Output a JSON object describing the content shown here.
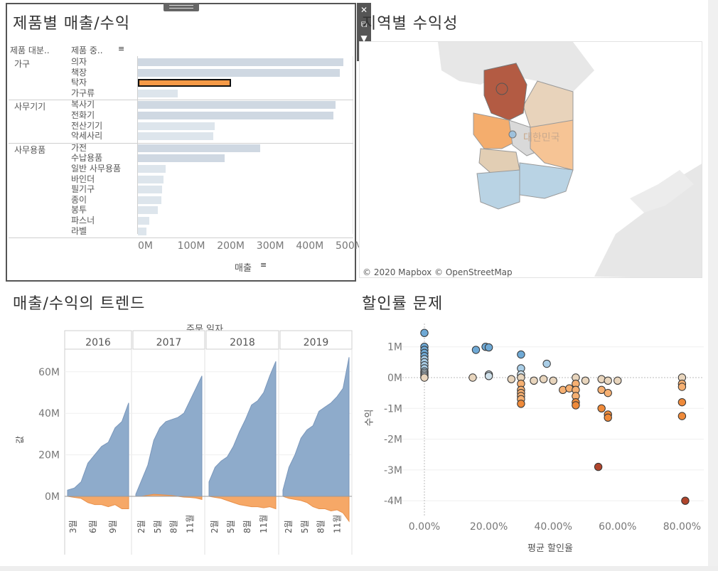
{
  "panels": {
    "product": {
      "title": "제품별 매출/수익",
      "col1": "제품 대분..",
      "col2": "제품 중..",
      "x_label": "매출",
      "x_ticks": [
        "0M",
        "100M",
        "200M",
        "300M",
        "400M",
        "500M"
      ]
    },
    "region": {
      "title": "지역별 수익성",
      "map_label": "대한민국",
      "credit": "© 2020 Mapbox © OpenStreetMap"
    },
    "trend": {
      "title": "매출/수익의 트렌드",
      "top_label": "주문 일자",
      "y_label": "값",
      "years": [
        "2016",
        "2017",
        "2018",
        "2019"
      ],
      "y_ticks": [
        "60M",
        "40M",
        "20M",
        "0M"
      ],
      "month_ticks": [
        [
          "3월",
          "6월",
          "9월"
        ],
        [
          "2월",
          "5월",
          "8월",
          "11월"
        ],
        [
          "2월",
          "5월",
          "8월",
          "11월"
        ],
        [
          "2월",
          "5월",
          "8월",
          "11월"
        ]
      ]
    },
    "discount": {
      "title": "할인률 문제",
      "x_label": "평균 할인율",
      "y_label": "수익",
      "x_ticks": [
        "0.00%",
        "20.00%",
        "40.00%",
        "60.00%",
        "80.00%"
      ],
      "y_ticks": [
        "1M",
        "0M",
        "-1M",
        "-2M",
        "-3M",
        "-4M"
      ]
    }
  },
  "products": [
    {
      "category": "가구",
      "items": [
        {
          "name": "의자",
          "sales": 520
        },
        {
          "name": "책장",
          "sales": 510
        },
        {
          "name": "탁자",
          "sales": 235,
          "selected": true
        },
        {
          "name": "가구류",
          "sales": 100
        }
      ]
    },
    {
      "category": "사무기기",
      "items": [
        {
          "name": "복사기",
          "sales": 500
        },
        {
          "name": "전화기",
          "sales": 495
        },
        {
          "name": "전산기기",
          "sales": 195
        },
        {
          "name": "악세사리",
          "sales": 190
        }
      ]
    },
    {
      "category": "사무용품",
      "items": [
        {
          "name": "가전",
          "sales": 310
        },
        {
          "name": "수납용품",
          "sales": 220
        },
        {
          "name": "일반 사무용품",
          "sales": 70
        },
        {
          "name": "바인더",
          "sales": 65
        },
        {
          "name": "필기구",
          "sales": 62
        },
        {
          "name": "종이",
          "sales": 60
        },
        {
          "name": "봉투",
          "sales": 50
        },
        {
          "name": "파스너",
          "sales": 28
        },
        {
          "name": "라벨",
          "sales": 22
        }
      ]
    }
  ],
  "colors": {
    "blue": "#8eabcb",
    "orange": "#f6a867",
    "selected": "#f59a47"
  },
  "icons": [
    "close-icon",
    "popout-icon",
    "filter-icon",
    "dropdown-icon",
    "sort-icon"
  ]
}
